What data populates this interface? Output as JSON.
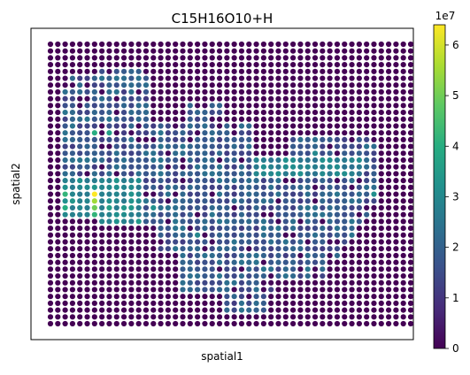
{
  "chart_data": {
    "type": "scatter",
    "subtype": "spatial-spot-heatmap",
    "title": "C15H16O10+H",
    "xlabel": "spatial1",
    "ylabel": "spatial2",
    "colormap": "viridis",
    "colorbar": {
      "min": 0,
      "max": 6.4,
      "multiplier_label": "1e7",
      "ticks": [
        0,
        1,
        2,
        3,
        4,
        5,
        6
      ],
      "tick_labels": [
        "0",
        "1",
        "2",
        "3",
        "4",
        "5",
        "6"
      ]
    },
    "grid": {
      "columns": 50,
      "rows": 42
    },
    "legend": "none",
    "background_value": 0,
    "tissue_regions": [
      {
        "description": "left vertical strip",
        "x_range": [
          2,
          15
        ],
        "y_range": [
          5,
          28
        ],
        "approx_value": 1.5
      },
      {
        "description": "main tissue body",
        "x_range": [
          14,
          46
        ],
        "y_range": [
          12,
          39
        ],
        "approx_value": 1.6
      },
      {
        "description": "lower lobe",
        "x_range": [
          18,
          38
        ],
        "y_range": [
          26,
          40
        ],
        "approx_value": 1.2
      }
    ],
    "high_spots": [
      {
        "x": 6,
        "y": 13,
        "value": 4.0
      },
      {
        "x": 8,
        "y": 13,
        "value": 3.6
      },
      {
        "x": 2,
        "y": 22,
        "value": 4.2
      },
      {
        "x": 2,
        "y": 24,
        "value": 4.0
      },
      {
        "x": 6,
        "y": 22,
        "value": 6.4
      },
      {
        "x": 6,
        "y": 23,
        "value": 5.5
      },
      {
        "x": 6,
        "y": 24,
        "value": 5.0
      },
      {
        "x": 6,
        "y": 25,
        "value": 4.2
      },
      {
        "x": 8,
        "y": 24,
        "value": 3.6
      },
      {
        "x": 10,
        "y": 24,
        "value": 3.4
      },
      {
        "x": 14,
        "y": 24,
        "value": 3.2
      },
      {
        "x": 20,
        "y": 28,
        "value": 3.0
      },
      {
        "x": 44,
        "y": 22,
        "value": 3.2
      },
      {
        "x": 36,
        "y": 16,
        "value": 3.0
      }
    ]
  }
}
